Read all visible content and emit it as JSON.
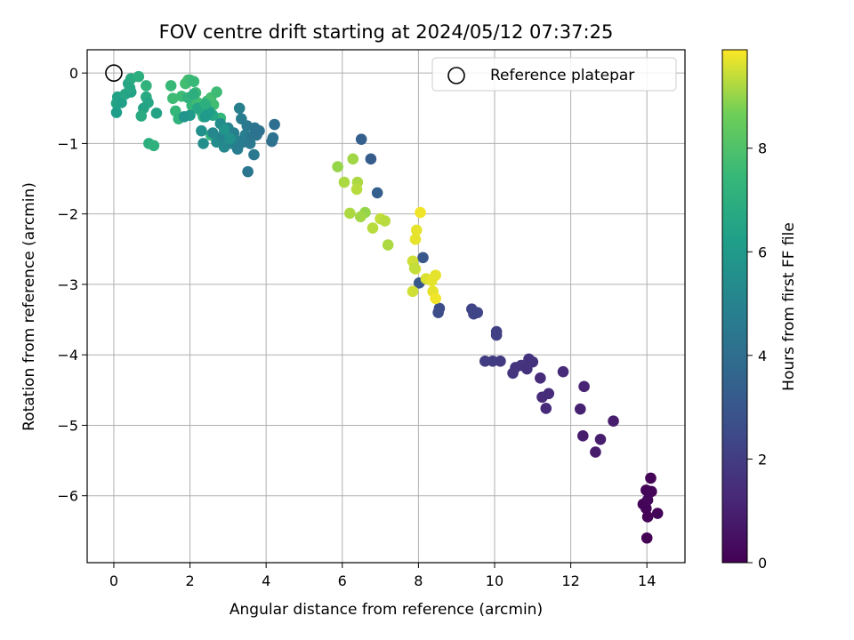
{
  "chart_data": {
    "type": "scatter",
    "title": "FOV centre drift starting at 2024/05/12 07:37:25",
    "xlabel": "Angular distance from reference (arcmin)",
    "ylabel": "Rotation from reference (arcmin)",
    "xlim": [
      -0.7,
      15.0
    ],
    "ylim": [
      -6.95,
      0.33
    ],
    "xticks": [
      0,
      2,
      4,
      6,
      8,
      10,
      12,
      14
    ],
    "yticks": [
      0,
      -1,
      -2,
      -3,
      -4,
      -5,
      -6
    ],
    "grid": true,
    "colormap": "viridis",
    "colorbar": {
      "label": "Hours from first FF file",
      "range": [
        0,
        9.9
      ],
      "ticks": [
        0,
        2,
        4,
        6,
        8
      ]
    },
    "legend": {
      "placement": "top-right",
      "entries": [
        "Reference platepar"
      ]
    },
    "reference_point": {
      "x": 0,
      "y": 0
    },
    "points": [
      {
        "x": 14.1,
        "y": -5.75,
        "h": 0.1
      },
      {
        "x": 13.98,
        "y": -5.92,
        "h": 0.1
      },
      {
        "x": 14.12,
        "y": -5.94,
        "h": 0.15
      },
      {
        "x": 13.9,
        "y": -6.12,
        "h": 0.1
      },
      {
        "x": 14.02,
        "y": -6.06,
        "h": 0.2
      },
      {
        "x": 13.98,
        "y": -6.18,
        "h": 0.1
      },
      {
        "x": 14.02,
        "y": -6.3,
        "h": 0.05
      },
      {
        "x": 14.28,
        "y": -6.25,
        "h": 0.1
      },
      {
        "x": 14.0,
        "y": -6.6,
        "h": 0.05
      },
      {
        "x": 13.12,
        "y": -4.94,
        "h": 0.9
      },
      {
        "x": 12.25,
        "y": -4.77,
        "h": 1.0
      },
      {
        "x": 12.35,
        "y": -4.45,
        "h": 1.1
      },
      {
        "x": 12.32,
        "y": -5.15,
        "h": 0.9
      },
      {
        "x": 12.78,
        "y": -5.2,
        "h": 0.9
      },
      {
        "x": 12.65,
        "y": -5.38,
        "h": 0.9
      },
      {
        "x": 11.8,
        "y": -4.24,
        "h": 1.3
      },
      {
        "x": 11.2,
        "y": -4.33,
        "h": 1.4
      },
      {
        "x": 11.42,
        "y": -4.55,
        "h": 1.4
      },
      {
        "x": 11.25,
        "y": -4.6,
        "h": 1.4
      },
      {
        "x": 11.35,
        "y": -4.76,
        "h": 1.3
      },
      {
        "x": 10.9,
        "y": -4.06,
        "h": 1.6
      },
      {
        "x": 11.0,
        "y": -4.1,
        "h": 1.6
      },
      {
        "x": 10.7,
        "y": -4.15,
        "h": 1.7
      },
      {
        "x": 10.85,
        "y": -4.2,
        "h": 1.6
      },
      {
        "x": 10.48,
        "y": -4.26,
        "h": 1.7
      },
      {
        "x": 10.55,
        "y": -4.18,
        "h": 1.7
      },
      {
        "x": 10.15,
        "y": -4.09,
        "h": 1.9
      },
      {
        "x": 9.75,
        "y": -4.09,
        "h": 2.0
      },
      {
        "x": 9.95,
        "y": -4.09,
        "h": 2.0
      },
      {
        "x": 10.05,
        "y": -3.67,
        "h": 2.1
      },
      {
        "x": 10.05,
        "y": -3.72,
        "h": 2.1
      },
      {
        "x": 9.4,
        "y": -3.35,
        "h": 2.3
      },
      {
        "x": 9.55,
        "y": -3.4,
        "h": 2.3
      },
      {
        "x": 9.45,
        "y": -3.42,
        "h": 2.3
      },
      {
        "x": 8.55,
        "y": -3.34,
        "h": 2.6
      },
      {
        "x": 8.52,
        "y": -3.4,
        "h": 2.6
      },
      {
        "x": 8.12,
        "y": -2.62,
        "h": 3.0
      },
      {
        "x": 8.02,
        "y": -2.98,
        "h": 3.0
      },
      {
        "x": 6.5,
        "y": -0.94,
        "h": 3.4
      },
      {
        "x": 6.75,
        "y": -1.22,
        "h": 3.2
      },
      {
        "x": 6.92,
        "y": -1.7,
        "h": 3.4
      },
      {
        "x": 8.05,
        "y": -1.98,
        "h": 9.8
      },
      {
        "x": 7.95,
        "y": -2.23,
        "h": 9.7
      },
      {
        "x": 7.92,
        "y": -2.36,
        "h": 9.7
      },
      {
        "x": 7.85,
        "y": -2.67,
        "h": 9.5
      },
      {
        "x": 7.92,
        "y": -2.78,
        "h": 9.6
      },
      {
        "x": 7.9,
        "y": -2.77,
        "h": 9.4
      },
      {
        "x": 8.2,
        "y": -2.92,
        "h": 9.6
      },
      {
        "x": 8.45,
        "y": -2.87,
        "h": 9.7
      },
      {
        "x": 8.35,
        "y": -2.95,
        "h": 9.7
      },
      {
        "x": 7.85,
        "y": -3.1,
        "h": 9.5
      },
      {
        "x": 8.38,
        "y": -3.1,
        "h": 9.7
      },
      {
        "x": 8.45,
        "y": -3.2,
        "h": 9.8
      },
      {
        "x": 7.0,
        "y": -2.07,
        "h": 9.4
      },
      {
        "x": 7.12,
        "y": -2.1,
        "h": 9.3
      },
      {
        "x": 7.2,
        "y": -2.44,
        "h": 9.2
      },
      {
        "x": 6.8,
        "y": -2.2,
        "h": 9.3
      },
      {
        "x": 6.6,
        "y": -1.98,
        "h": 9.0
      },
      {
        "x": 6.48,
        "y": -2.04,
        "h": 9.1
      },
      {
        "x": 6.2,
        "y": -1.99,
        "h": 9.2
      },
      {
        "x": 5.88,
        "y": -1.33,
        "h": 9.0
      },
      {
        "x": 6.05,
        "y": -1.55,
        "h": 9.2
      },
      {
        "x": 6.28,
        "y": -1.22,
        "h": 9.1
      },
      {
        "x": 6.4,
        "y": -1.55,
        "h": 9.2
      },
      {
        "x": 6.38,
        "y": -1.65,
        "h": 9.3
      },
      {
        "x": 0.07,
        "y": -0.43,
        "h": 6.5
      },
      {
        "x": 0.07,
        "y": -0.56,
        "h": 6.2
      },
      {
        "x": 0.1,
        "y": -0.34,
        "h": 6.4
      },
      {
        "x": 0.2,
        "y": -0.42,
        "h": 6.3
      },
      {
        "x": 0.3,
        "y": -0.3,
        "h": 6.6
      },
      {
        "x": 0.38,
        "y": -0.15,
        "h": 6.6
      },
      {
        "x": 0.45,
        "y": -0.08,
        "h": 6.8
      },
      {
        "x": 0.65,
        "y": -0.05,
        "h": 7.0
      },
      {
        "x": 0.45,
        "y": -0.27,
        "h": 6.4
      },
      {
        "x": 0.42,
        "y": -0.21,
        "h": 6.6
      },
      {
        "x": 0.85,
        "y": -0.18,
        "h": 7.2
      },
      {
        "x": 0.85,
        "y": -0.34,
        "h": 6.8
      },
      {
        "x": 0.9,
        "y": -0.42,
        "h": 6.6
      },
      {
        "x": 0.78,
        "y": -0.5,
        "h": 6.5
      },
      {
        "x": 0.72,
        "y": -0.61,
        "h": 6.8
      },
      {
        "x": 0.92,
        "y": -1.0,
        "h": 7.0
      },
      {
        "x": 1.05,
        "y": -1.03,
        "h": 7.1
      },
      {
        "x": 1.12,
        "y": -0.57,
        "h": 6.4
      },
      {
        "x": 1.5,
        "y": -0.18,
        "h": 7.5
      },
      {
        "x": 1.55,
        "y": -0.36,
        "h": 7.6
      },
      {
        "x": 1.62,
        "y": -0.54,
        "h": 7.4
      },
      {
        "x": 1.7,
        "y": -0.65,
        "h": 7.2
      },
      {
        "x": 1.78,
        "y": -0.33,
        "h": 7.6
      },
      {
        "x": 1.88,
        "y": -0.15,
        "h": 7.7
      },
      {
        "x": 1.95,
        "y": -0.1,
        "h": 7.8
      },
      {
        "x": 2.0,
        "y": -0.1,
        "h": 7.6
      },
      {
        "x": 2.1,
        "y": -0.12,
        "h": 7.5
      },
      {
        "x": 2.05,
        "y": -0.46,
        "h": 7.4
      },
      {
        "x": 2.15,
        "y": -0.28,
        "h": 7.6
      },
      {
        "x": 2.2,
        "y": -0.42,
        "h": 7.7
      },
      {
        "x": 2.3,
        "y": -0.55,
        "h": 7.3
      },
      {
        "x": 2.35,
        "y": -0.62,
        "h": 7.1
      },
      {
        "x": 2.45,
        "y": -0.4,
        "h": 7.6
      },
      {
        "x": 2.55,
        "y": -0.35,
        "h": 7.8
      },
      {
        "x": 2.62,
        "y": -0.45,
        "h": 7.7
      },
      {
        "x": 2.7,
        "y": -0.27,
        "h": 7.6
      },
      {
        "x": 2.8,
        "y": -0.64,
        "h": 7.4
      },
      {
        "x": 2.55,
        "y": -0.88,
        "h": 7.3
      },
      {
        "x": 2.6,
        "y": -0.6,
        "h": 6.6
      },
      {
        "x": 2.5,
        "y": -0.55,
        "h": 6.2
      },
      {
        "x": 2.4,
        "y": -0.62,
        "h": 6.0
      },
      {
        "x": 2.0,
        "y": -0.6,
        "h": 6.0
      },
      {
        "x": 1.85,
        "y": -0.62,
        "h": 5.8
      },
      {
        "x": 2.3,
        "y": -0.82,
        "h": 5.6
      },
      {
        "x": 2.35,
        "y": -1.0,
        "h": 5.5
      },
      {
        "x": 2.6,
        "y": -0.85,
        "h": 5.2
      },
      {
        "x": 2.7,
        "y": -0.98,
        "h": 5.4
      },
      {
        "x": 2.8,
        "y": -0.72,
        "h": 5.4
      },
      {
        "x": 2.85,
        "y": -0.9,
        "h": 5.1
      },
      {
        "x": 2.9,
        "y": -1.05,
        "h": 5.2
      },
      {
        "x": 3.0,
        "y": -0.78,
        "h": 5.0
      },
      {
        "x": 3.05,
        "y": -0.92,
        "h": 4.9
      },
      {
        "x": 3.1,
        "y": -1.0,
        "h": 5.0
      },
      {
        "x": 3.15,
        "y": -0.85,
        "h": 4.8
      },
      {
        "x": 3.2,
        "y": -0.95,
        "h": 4.9
      },
      {
        "x": 3.25,
        "y": -1.08,
        "h": 4.7
      },
      {
        "x": 3.3,
        "y": -0.5,
        "h": 4.8
      },
      {
        "x": 3.35,
        "y": -0.65,
        "h": 4.6
      },
      {
        "x": 3.4,
        "y": -0.98,
        "h": 4.6
      },
      {
        "x": 3.45,
        "y": -0.88,
        "h": 4.7
      },
      {
        "x": 3.5,
        "y": -0.75,
        "h": 4.5
      },
      {
        "x": 3.52,
        "y": -1.4,
        "h": 4.4
      },
      {
        "x": 3.58,
        "y": -1.0,
        "h": 4.5
      },
      {
        "x": 3.62,
        "y": -0.9,
        "h": 4.4
      },
      {
        "x": 3.7,
        "y": -0.78,
        "h": 4.3
      },
      {
        "x": 3.68,
        "y": -1.16,
        "h": 4.5
      },
      {
        "x": 3.75,
        "y": -0.88,
        "h": 4.3
      },
      {
        "x": 3.82,
        "y": -0.82,
        "h": 4.2
      },
      {
        "x": 4.15,
        "y": -0.97,
        "h": 4.1
      },
      {
        "x": 4.18,
        "y": -0.92,
        "h": 4.2
      },
      {
        "x": 4.22,
        "y": -0.73,
        "h": 4.0
      },
      {
        "x": 3.05,
        "y": -0.93,
        "h": 5.6
      },
      {
        "x": 2.9,
        "y": -0.8,
        "h": 5.8
      },
      {
        "x": 2.2,
        "y": -0.5,
        "h": 6.6
      },
      {
        "x": 2.4,
        "y": -0.44,
        "h": 7.0
      },
      {
        "x": 1.95,
        "y": -0.35,
        "h": 7.2
      },
      {
        "x": 2.1,
        "y": -0.3,
        "h": 7.0
      }
    ]
  }
}
